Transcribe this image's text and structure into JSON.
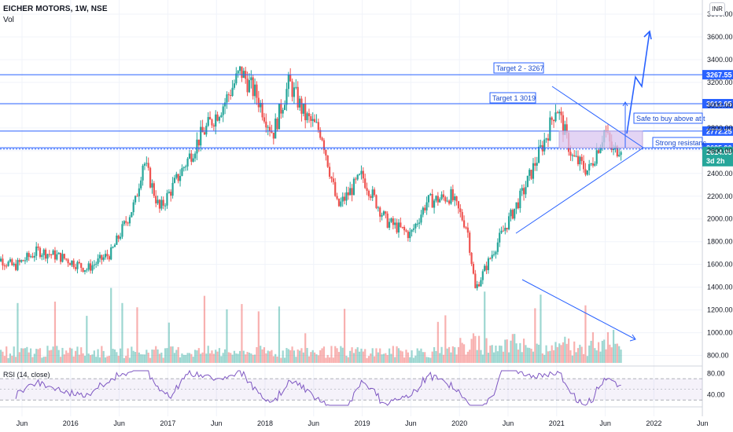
{
  "header": {
    "symbol": "EICHER MOTORS, 1W, NSE",
    "volume_label": "Vol",
    "currency": "INR"
  },
  "rsi": {
    "label": "RSI (14, close)",
    "ticks": [
      "80.00",
      "40.00"
    ],
    "upper": 70,
    "lower": 30,
    "min": 20,
    "max": 85
  },
  "colors": {
    "up": "#26a69a",
    "down": "#ef5350",
    "line": "#2962ff",
    "rsi": "#7e57c2",
    "zone": "#d9c6f0"
  },
  "chart_data": {
    "type": "candlestick",
    "title": "EICHER MOTORS, 1W, NSE",
    "xlabel": "",
    "ylabel": "",
    "ylim": [
      750,
      3850
    ],
    "y_ticks": [
      "3800.00",
      "3600.00",
      "3400.00",
      "3200.00",
      "3000.00",
      "2800.00",
      "2600.00",
      "2400.00",
      "2200.00",
      "2000.00",
      "1800.00",
      "1600.00",
      "1400.00",
      "1200.00",
      "1000.00",
      "800.00"
    ],
    "x_ticks": [
      "Jun",
      "2016",
      "Jun",
      "2017",
      "Jun",
      "2018",
      "Jun",
      "2019",
      "Jun",
      "2020",
      "Jun",
      "2021",
      "Jun",
      "2022",
      "Jun"
    ],
    "price_path": [
      [
        "2015-03",
        1700
      ],
      [
        "2015-06",
        1580
      ],
      [
        "2015-09",
        1720
      ],
      [
        "2015-12",
        1660
      ],
      [
        "2016-03",
        1560
      ],
      [
        "2016-06",
        1700
      ],
      [
        "2016-09",
        2150
      ],
      [
        "2016-10",
        2520
      ],
      [
        "2016-12",
        2080
      ],
      [
        "2017-02",
        2330
      ],
      [
        "2017-05",
        2720
      ],
      [
        "2017-08",
        3020
      ],
      [
        "2017-10",
        3300
      ],
      [
        "2017-12",
        3080
      ],
      [
        "2018-02",
        2750
      ],
      [
        "2018-04",
        3200
      ],
      [
        "2018-06",
        2900
      ],
      [
        "2018-08",
        2760
      ],
      [
        "2018-10",
        2100
      ],
      [
        "2019-01",
        2380
      ],
      [
        "2019-04",
        1980
      ],
      [
        "2019-07",
        1860
      ],
      [
        "2019-09",
        2150
      ],
      [
        "2019-12",
        2200
      ],
      [
        "2020-02",
        1920
      ],
      [
        "2020-03",
        1380
      ],
      [
        "2020-06",
        1830
      ],
      [
        "2020-09",
        2250
      ],
      [
        "2020-12",
        2770
      ],
      [
        "2021-01",
        3000
      ],
      [
        "2021-03",
        2540
      ],
      [
        "2021-05",
        2420
      ],
      [
        "2021-07",
        2780
      ],
      [
        "2021-08",
        2580
      ],
      [
        "2021-09",
        2650
      ]
    ],
    "horizontal_levels": [
      {
        "value": 3267.55,
        "label": "3267.55"
      },
      {
        "value": 3012.95,
        "label": "3012.95"
      },
      {
        "value": 2772.25,
        "label": "2772.25"
      },
      {
        "value": 2625.9,
        "label": "2625.90"
      }
    ],
    "current_price": {
      "value": 2614.05,
      "label": "2614.05",
      "countdown": "3d 2h"
    },
    "annotations": [
      {
        "text": "Target 2 - 3267"
      },
      {
        "text": "Target 1 3019"
      },
      {
        "text": "Safe to buy above at t"
      },
      {
        "text": "Strong resistanc"
      }
    ]
  }
}
